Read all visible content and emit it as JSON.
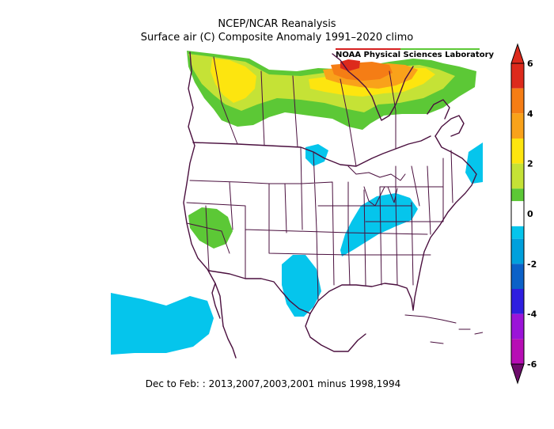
{
  "title_line1": "NCEP/NCAR Reanalysis",
  "title_line2": "Surface air (C) Composite Anomaly 1991–2020 climo",
  "lab_label": "NOAA Physical Sciences Laboratory",
  "caption": "Dec to Feb: : 2013,2007,2003,2001 minus 1998,1994",
  "colorbar": {
    "tick_labels": [
      "6",
      "4",
      "2",
      "0",
      "-2",
      "-4",
      "-6"
    ],
    "tick_values": [
      6,
      4,
      2,
      0,
      -2,
      -4,
      -6
    ],
    "bins": [
      {
        "from": 5,
        "to": 6,
        "color": "#dd2a1c"
      },
      {
        "from": 4,
        "to": 5,
        "color": "#f57d15"
      },
      {
        "from": 3,
        "to": 4,
        "color": "#f9a21a"
      },
      {
        "from": 2,
        "to": 3,
        "color": "#fde50f"
      },
      {
        "from": 1,
        "to": 2,
        "color": "#c5e236"
      },
      {
        "from": 0.5,
        "to": 1,
        "color": "#5cc836"
      },
      {
        "from": -0.5,
        "to": 0.5,
        "color": "#ffffff"
      },
      {
        "from": -1,
        "to": -0.5,
        "color": "#05c5ec"
      },
      {
        "from": -2,
        "to": -1,
        "color": "#00a0dc"
      },
      {
        "from": -3,
        "to": -2,
        "color": "#0b61c8"
      },
      {
        "from": -4,
        "to": -3,
        "color": "#2f1ee0"
      },
      {
        "from": -5,
        "to": -4,
        "color": "#9b14d8"
      },
      {
        "from": -6,
        "to": -5,
        "color": "#b70eb4"
      }
    ]
  },
  "colors": {
    "border": "#4a0f3e",
    "cyan": "#05c5ec",
    "green": "#5cc836",
    "yellowgreen": "#c5e236",
    "yellow": "#fde50f",
    "orange": "#f9a21a",
    "darkorange": "#f57d15",
    "red": "#dd2a1c"
  }
}
